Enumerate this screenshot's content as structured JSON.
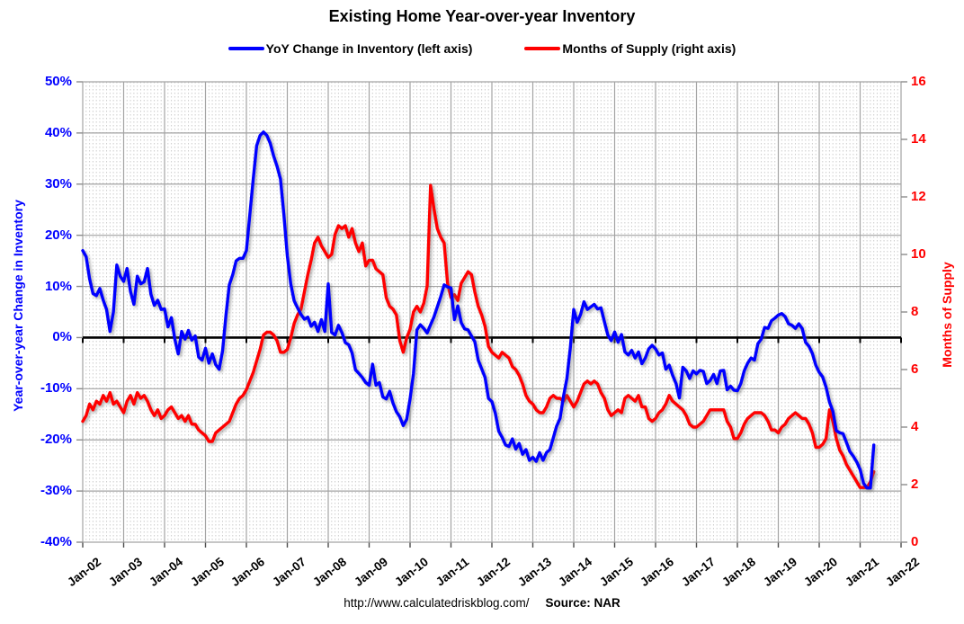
{
  "header": {
    "title": "Existing Home Year-over-year Inventory"
  },
  "legend": {
    "items": [
      {
        "label": "YoY Change in Inventory (left axis)",
        "color": "#0000ff"
      },
      {
        "label": "Months of Supply (right axis)",
        "color": "#ff0000"
      }
    ]
  },
  "footer": {
    "url": "http://www.calculatedriskblog.com/",
    "source": "Source: NAR"
  },
  "axes": {
    "left": {
      "title": "Year-over-year Change in Inventory",
      "color": "#0000ff",
      "ticks": [
        "50%",
        "40%",
        "30%",
        "20%",
        "10%",
        "0%",
        "-10%",
        "-20%",
        "-30%",
        "-40%"
      ]
    },
    "right": {
      "title": "Months of Supply",
      "color": "#ff0000",
      "ticks": [
        "16",
        "14",
        "12",
        "10",
        "8",
        "6",
        "4",
        "2",
        "0"
      ]
    },
    "x": {
      "ticks": [
        "Jan-02",
        "Jan-03",
        "Jan-04",
        "Jan-05",
        "Jan-06",
        "Jan-07",
        "Jan-08",
        "Jan-09",
        "Jan-10",
        "Jan-11",
        "Jan-12",
        "Jan-13",
        "Jan-14",
        "Jan-15",
        "Jan-16",
        "Jan-17",
        "Jan-18",
        "Jan-19",
        "Jan-20",
        "Jan-21",
        "Jan-22"
      ]
    }
  },
  "chart_data": {
    "type": "line",
    "title": "Existing Home Year-over-year Inventory",
    "frequency": "monthly",
    "x_start": "2002-01",
    "x_data_end": "2021-05",
    "x_axis_end": "2022-01",
    "grid": true,
    "legend_position": "top",
    "zero_line": "left axis 0% emphasized in black",
    "ylim_left": [
      -40,
      50
    ],
    "ylim_right": [
      0,
      16
    ],
    "series": [
      {
        "name": "YoY Change in Inventory (left axis)",
        "axis": "left",
        "unit": "%",
        "color": "#0000ff",
        "values": [
          17,
          15.8,
          11.5,
          8.6,
          8.2,
          9.6,
          7.3,
          5.5,
          1.2,
          5,
          14.2,
          12,
          11,
          13.5,
          9,
          6.5,
          12,
          10.5,
          10.9,
          13.5,
          8.5,
          6.3,
          7.3,
          5.5,
          5.6,
          2.1,
          3.9,
          -0.3,
          -3.2,
          1.2,
          -0.3,
          1.4,
          -0.5,
          0.3,
          -3.8,
          -4.4,
          -2.1,
          -5,
          -3.2,
          -5.3,
          -6.2,
          -2.6,
          4.4,
          10.3,
          12.3,
          15,
          15.5,
          15.5,
          17,
          24,
          31,
          37.5,
          39.5,
          40.2,
          39.5,
          38,
          35.5,
          33.5,
          31,
          24,
          16,
          10.5,
          7.2,
          5.8,
          4.5,
          3.6,
          4,
          2.2,
          3,
          1.2,
          3.5,
          1.2,
          10.5,
          1,
          0.5,
          2.4,
          1,
          -1,
          -1.4,
          -3,
          -6.3,
          -7,
          -7.8,
          -8.8,
          -9.3,
          -5.2,
          -9.3,
          -8.8,
          -11.6,
          -12,
          -10.5,
          -12.8,
          -14.5,
          -15.5,
          -17.2,
          -16,
          -12,
          -7,
          1.5,
          2.5,
          1.8,
          0.9,
          2.5,
          4,
          6,
          8,
          10.3,
          9.9,
          9.7,
          3.5,
          6.2,
          2.9,
          1.7,
          1.5,
          0.3,
          -0.8,
          -4.4,
          -6.1,
          -7.8,
          -11.9,
          -12.5,
          -14.8,
          -18.3,
          -19.5,
          -21,
          -21.3,
          -19.8,
          -21.8,
          -20.7,
          -22.8,
          -21.9,
          -24,
          -23.4,
          -24.2,
          -22.5,
          -24,
          -22.5,
          -21.9,
          -19.6,
          -17.3,
          -15.8,
          -11.5,
          -8,
          -2,
          5.5,
          3,
          4.5,
          7,
          5.5,
          6,
          6.5,
          5.6,
          5.8,
          3.1,
          0.5,
          -0.6,
          1.1,
          -0.9,
          0.6,
          -2.8,
          -3.4,
          -2.5,
          -4,
          -2.8,
          -5.1,
          -4,
          -2.2,
          -1.5,
          -2.2,
          -3.4,
          -3,
          -6.2,
          -5.4,
          -7.4,
          -9,
          -11.8,
          -5.8,
          -6.5,
          -8,
          -6.5,
          -7.1,
          -6.4,
          -6.6,
          -9,
          -8.4,
          -7.2,
          -9,
          -6.5,
          -6.4,
          -10.2,
          -9.5,
          -10.3,
          -10.4,
          -9,
          -6.5,
          -5,
          -4,
          -4.4,
          -1.2,
          -0.3,
          2,
          1.8,
          3.3,
          3.8,
          4.4,
          4.7,
          4.1,
          2.7,
          2.4,
          1.8,
          2.7,
          1.8,
          -0.9,
          -1.7,
          -3.1,
          -5.4,
          -6.8,
          -7.7,
          -9.7,
          -12.6,
          -14.4,
          -18.2,
          -18.6,
          -18.8,
          -20.5,
          -22.3,
          -23.2,
          -24.3,
          -25.8,
          -28.5,
          -29.4,
          -29.4,
          -21
        ]
      },
      {
        "name": "Months of Supply (right axis)",
        "axis": "right",
        "unit": "months",
        "color": "#ff0000",
        "values": [
          4.2,
          4.4,
          4.8,
          4.6,
          4.9,
          4.8,
          5.1,
          4.9,
          5.2,
          4.8,
          4.9,
          4.7,
          4.5,
          4.9,
          5.1,
          4.8,
          5.2,
          5,
          5.1,
          4.9,
          4.6,
          4.4,
          4.6,
          4.3,
          4.4,
          4.6,
          4.7,
          4.5,
          4.3,
          4.4,
          4.2,
          4.4,
          4.1,
          4.1,
          3.9,
          3.8,
          3.7,
          3.5,
          3.5,
          3.8,
          3.9,
          4,
          4.1,
          4.2,
          4.5,
          4.8,
          5,
          5.1,
          5.3,
          5.6,
          5.9,
          6.3,
          6.7,
          7.2,
          7.3,
          7.3,
          7.2,
          7,
          6.6,
          6.6,
          6.7,
          7.1,
          7.6,
          7.9,
          8.1,
          8.7,
          9.3,
          9.8,
          10.4,
          10.6,
          10.3,
          10.1,
          9.9,
          10,
          10.7,
          11,
          10.9,
          11,
          10.6,
          10.9,
          10.4,
          10.1,
          10.4,
          9.6,
          9.8,
          9.8,
          9.5,
          9.4,
          9.3,
          8.5,
          8.2,
          8.1,
          7.9,
          7,
          6.6,
          7.1,
          7.4,
          8,
          8.2,
          8,
          8.3,
          8.9,
          12.4,
          11.6,
          10.9,
          10.6,
          10.4,
          9,
          8.5,
          8.6,
          8.4,
          9,
          9.2,
          9.4,
          9.3,
          8.7,
          8.2,
          7.9,
          7.5,
          6.8,
          6.6,
          6.5,
          6.4,
          6.6,
          6.5,
          6.4,
          6.1,
          6,
          5.8,
          5.5,
          5.1,
          4.9,
          4.8,
          4.6,
          4.5,
          4.5,
          4.7,
          5,
          5.1,
          5,
          5,
          4.9,
          5.1,
          4.9,
          4.7,
          4.9,
          5.2,
          5.5,
          5.6,
          5.5,
          5.6,
          5.5,
          5.2,
          5,
          4.6,
          4.4,
          4.5,
          4.6,
          4.5,
          5,
          5.1,
          5,
          4.9,
          5.1,
          4.7,
          4.7,
          4.3,
          4.2,
          4.3,
          4.5,
          4.6,
          4.8,
          5.1,
          4.9,
          4.8,
          4.7,
          4.6,
          4.4,
          4.1,
          4,
          4,
          4.1,
          4.2,
          4.4,
          4.6,
          4.6,
          4.6,
          4.6,
          4.6,
          4.2,
          4,
          3.6,
          3.6,
          3.8,
          4.1,
          4.3,
          4.4,
          4.5,
          4.5,
          4.5,
          4.4,
          4.2,
          3.9,
          3.9,
          3.8,
          4,
          4.1,
          4.3,
          4.4,
          4.5,
          4.4,
          4.3,
          4.3,
          4.1,
          3.8,
          3.3,
          3.3,
          3.4,
          3.6,
          4.6,
          4.2,
          3.6,
          3.2,
          3,
          2.7,
          2.5,
          2.3,
          2.1,
          1.9,
          1.9,
          1.9,
          2.1,
          2.45
        ]
      }
    ]
  }
}
